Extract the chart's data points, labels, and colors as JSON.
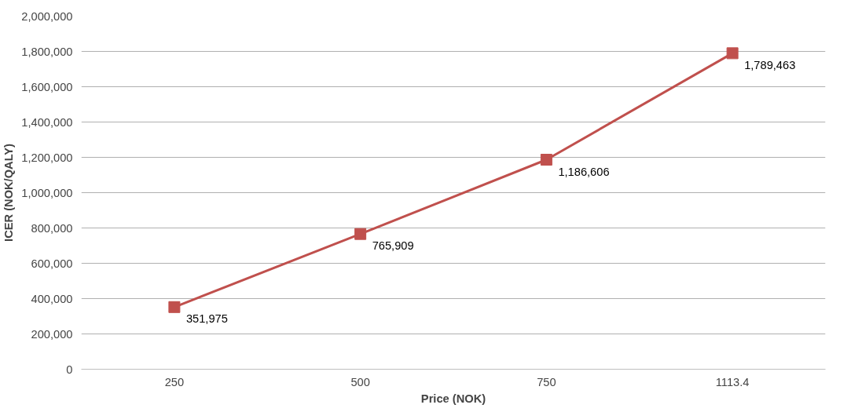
{
  "chart_data": {
    "type": "line",
    "xlabel": "Price (NOK)",
    "ylabel": "ICER (NOK/QALY)",
    "categories": [
      "250",
      "500",
      "750",
      "1113.4"
    ],
    "series": [
      {
        "color": "#c0504d",
        "values": [
          351975,
          765909,
          1186606,
          1789463
        ],
        "value_labels": [
          "351,975",
          "765,909",
          "1,186,606",
          "1,789,463"
        ]
      }
    ],
    "ylim": [
      0,
      2000000
    ],
    "yticks": [
      {
        "value": 0,
        "label": "0"
      },
      {
        "value": 200000,
        "label": "200,000"
      },
      {
        "value": 400000,
        "label": "400,000"
      },
      {
        "value": 600000,
        "label": "600,000"
      },
      {
        "value": 800000,
        "label": "800,000"
      },
      {
        "value": 1000000,
        "label": "1,000,000"
      },
      {
        "value": 1200000,
        "label": "1,200,000"
      },
      {
        "value": 1400000,
        "label": "1,400,000"
      },
      {
        "value": 1600000,
        "label": "1,600,000"
      },
      {
        "value": 1800000,
        "label": "1,800,000"
      },
      {
        "value": 2000000,
        "label": "2,000,000"
      }
    ],
    "grid": "y",
    "marker": "square",
    "line_style": "solid"
  }
}
